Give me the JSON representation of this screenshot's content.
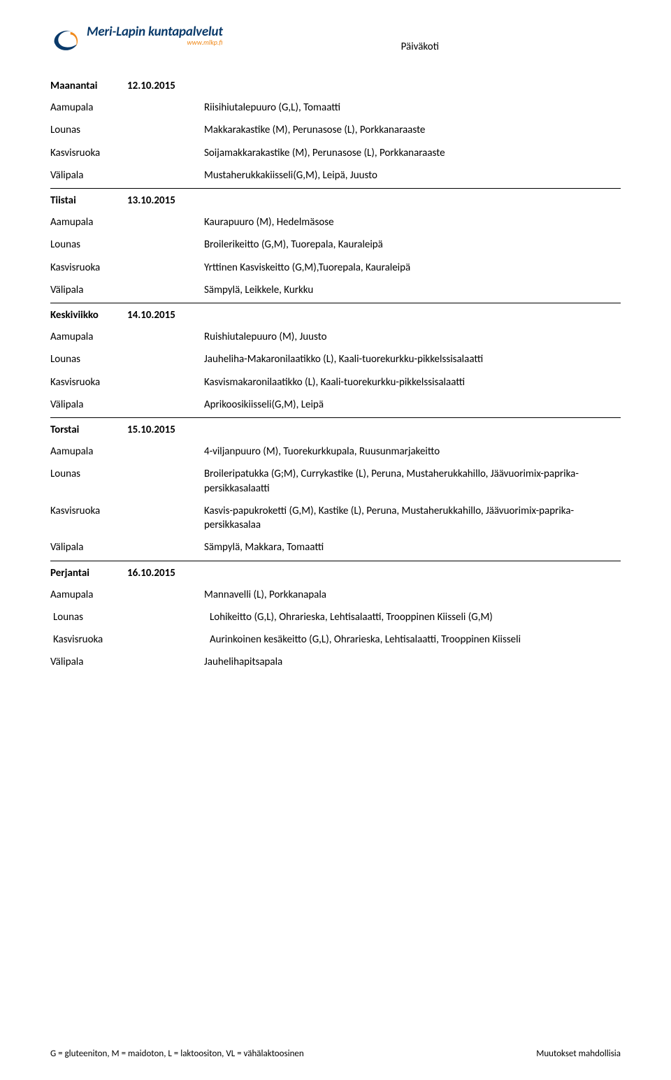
{
  "logo": {
    "brand_text": "Meri-Lapin kuntapalvelut",
    "brand_sub": "www.mlkp.fi",
    "mark_primary_color": "#0a3a6a",
    "mark_accent_color": "#f08a1c"
  },
  "doc_title": "Päiväkoti",
  "days": [
    {
      "name": "Maanantai",
      "date": "12.10.2015",
      "rows": [
        {
          "label": "Aamupala",
          "value": "Riisihiutalepuuro (G,L), Tomaatti"
        },
        {
          "label": "Lounas",
          "value": "Makkarakastike (M), Perunasose (L), Porkkanaraaste"
        },
        {
          "label": "Kasvisruoka",
          "value": "Soijamakkarakastike (M), Perunasose (L), Porkkanaraaste"
        },
        {
          "label": "Välipala",
          "value": "Mustaherukkakiisseli(G,M), Leipä, Juusto"
        }
      ]
    },
    {
      "name": "Tiistai",
      "date": "13.10.2015",
      "rows": [
        {
          "label": "Aamupala",
          "value": "Kaurapuuro (M), Hedelmäsose"
        },
        {
          "label": "Lounas",
          "value": "Broilerikeitto (G,M), Tuorepala, Kauraleipä"
        },
        {
          "label": "Kasvisruoka",
          "value": "Yrttinen Kasviskeitto (G,M),Tuorepala, Kauraleipä"
        },
        {
          "label": "Välipala",
          "value": "Sämpylä, Leikkele, Kurkku"
        }
      ]
    },
    {
      "name": "Keskiviikko",
      "date": "14.10.2015",
      "rows": [
        {
          "label": "Aamupala",
          "value": "Ruishiutalepuuro (M), Juusto"
        },
        {
          "label": "Lounas",
          "value": "Jauheliha-Makaronilaatikko (L), Kaali-tuorekurkku-pikkelssisalaatti"
        },
        {
          "label": "Kasvisruoka",
          "value": "Kasvismakaronilaatikko (L), Kaali-tuorekurkku-pikkelssisalaatti"
        },
        {
          "label": "Välipala",
          "value": "Aprikoosikiisseli(G,M), Leipä"
        }
      ]
    },
    {
      "name": "Torstai",
      "date": "15.10.2015",
      "rows": [
        {
          "label": "Aamupala",
          "value": "4-viljanpuuro (M), Tuorekurkkupala, Ruusunmarjakeitto"
        },
        {
          "label": "Lounas",
          "value": "Broileripatukka (G;M), Currykastike (L), Peruna, Mustaherukkahillo,  Jäävuorimix-paprika-persikkasalaatti"
        },
        {
          "label": "Kasvisruoka",
          "value": "Kasvis-papukroketti (G,M), Kastike (L), Peruna, Mustaherukkahillo, Jäävuorimix-paprika-persikkasalaa"
        },
        {
          "label": "Välipala",
          "value": "Sämpylä, Makkara, Tomaatti"
        }
      ]
    },
    {
      "name": "Perjantai",
      "date": "16.10.2015",
      "rows": [
        {
          "label": "Aamupala",
          "value": "Mannavelli (L), Porkkanapala"
        },
        {
          "label": "Lounas",
          "value": "Lohikeitto (G,L), Ohrarieska, Lehtisalaatti,  Trooppinen Kiisseli (G,M)",
          "indent": true
        },
        {
          "label": "Kasvisruoka",
          "value": "Aurinkoinen kesäkeitto (G,L), Ohrarieska, Lehtisalaatti, Trooppinen Kiisseli",
          "indent": true
        },
        {
          "label": "Välipala",
          "value": "Jauhelihapitsapala"
        }
      ]
    }
  ],
  "footer": {
    "left": "G = gluteeniton, M = maidoton, L = laktoositon, VL = vähälaktoosinen",
    "right": "Muutokset mahdollisia"
  }
}
